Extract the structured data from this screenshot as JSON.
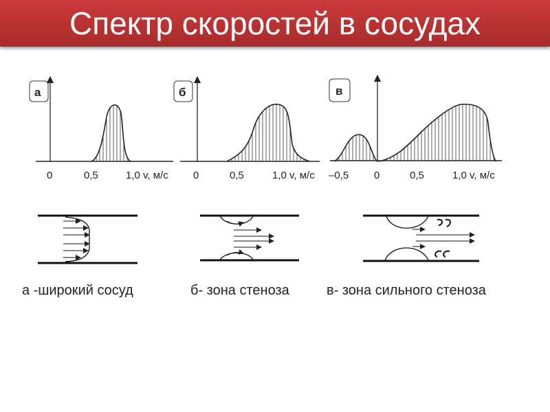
{
  "title": "Спектр скоростей в сосудах",
  "panels": [
    {
      "label": "а",
      "ticks": [
        "0",
        "0,5",
        "1,0"
      ],
      "axis_unit": "v, м/с",
      "caption": "а -широкий сосуд"
    },
    {
      "label": "б",
      "ticks": [
        "0",
        "0,5",
        "1,0"
      ],
      "axis_unit": "v, м/с",
      "caption": "б- зона стеноза"
    },
    {
      "label": "в",
      "ticks": [
        "–0,5",
        "0",
        "0,5",
        "1,0"
      ],
      "axis_unit": "v, м/с",
      "caption": "в- зона сильного стеноза"
    }
  ],
  "colors": {
    "title_bar": "#b83232",
    "title_text": "#ffffff",
    "ink": "#222222"
  }
}
